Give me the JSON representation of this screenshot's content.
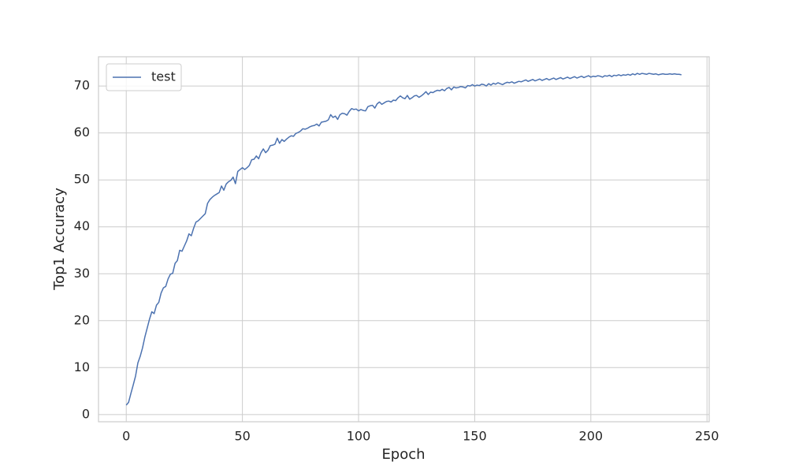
{
  "chart_data": {
    "type": "line",
    "x_label": "Epoch",
    "y_label": "Top1 Accuracy",
    "x": [
      0,
      1,
      2,
      3,
      4,
      5,
      6,
      7,
      8,
      9,
      10,
      11,
      12,
      13,
      14,
      15,
      16,
      17,
      18,
      19,
      20,
      21,
      22,
      23,
      24,
      25,
      26,
      27,
      28,
      29,
      30,
      31,
      32,
      33,
      34,
      35,
      36,
      37,
      38,
      39,
      40,
      41,
      42,
      43,
      44,
      45,
      46,
      47,
      48,
      49,
      50,
      51,
      52,
      53,
      54,
      55,
      56,
      57,
      58,
      59,
      60,
      61,
      62,
      63,
      64,
      65,
      66,
      67,
      68,
      69,
      70,
      71,
      72,
      73,
      74,
      75,
      76,
      77,
      78,
      79,
      80,
      81,
      82,
      83,
      84,
      85,
      86,
      87,
      88,
      89,
      90,
      91,
      92,
      93,
      94,
      95,
      96,
      97,
      98,
      99,
      100,
      101,
      102,
      103,
      104,
      105,
      106,
      107,
      108,
      109,
      110,
      111,
      112,
      113,
      114,
      115,
      116,
      117,
      118,
      119,
      120,
      121,
      122,
      123,
      124,
      125,
      126,
      127,
      128,
      129,
      130,
      131,
      132,
      133,
      134,
      135,
      136,
      137,
      138,
      139,
      140,
      141,
      142,
      143,
      144,
      145,
      146,
      147,
      148,
      149,
      150,
      151,
      152,
      153,
      154,
      155,
      156,
      157,
      158,
      159,
      160,
      161,
      162,
      163,
      164,
      165,
      166,
      167,
      168,
      169,
      170,
      171,
      172,
      173,
      174,
      175,
      176,
      177,
      178,
      179,
      180,
      181,
      182,
      183,
      184,
      185,
      186,
      187,
      188,
      189,
      190,
      191,
      192,
      193,
      194,
      195,
      196,
      197,
      198,
      199,
      200,
      201,
      202,
      203,
      204,
      205,
      206,
      207,
      208,
      209,
      210,
      211,
      212,
      213,
      214,
      215,
      216,
      217,
      218,
      219,
      220,
      221,
      222,
      223,
      224,
      225,
      226,
      227,
      228,
      229,
      230,
      231,
      232,
      233,
      234,
      235,
      236,
      237,
      238,
      239
    ],
    "series": [
      {
        "name": "test",
        "color": "#4c72b0",
        "values": [
          2.0,
          2.6,
          4.5,
          6.3,
          8.2,
          11.0,
          12.4,
          14.2,
          16.5,
          18.4,
          20.3,
          21.9,
          21.5,
          23.3,
          23.9,
          25.9,
          27.0,
          27.3,
          28.9,
          29.9,
          30.1,
          32.2,
          32.8,
          35.0,
          34.8,
          35.9,
          37.0,
          38.5,
          38.1,
          39.7,
          41.0,
          41.3,
          41.8,
          42.3,
          42.8,
          45.0,
          45.8,
          46.3,
          46.7,
          47.0,
          47.3,
          48.7,
          47.8,
          49.1,
          49.6,
          49.9,
          50.6,
          49.2,
          51.8,
          52.2,
          52.6,
          52.2,
          52.6,
          53.1,
          54.3,
          54.4,
          55.1,
          54.5,
          55.8,
          56.6,
          55.8,
          56.3,
          57.3,
          57.4,
          57.6,
          58.9,
          57.8,
          58.6,
          58.2,
          58.7,
          59.1,
          59.4,
          59.3,
          59.9,
          60.1,
          60.4,
          60.9,
          60.8,
          61.0,
          61.3,
          61.5,
          61.6,
          61.9,
          61.5,
          62.3,
          62.4,
          62.5,
          62.8,
          63.9,
          63.3,
          63.6,
          62.9,
          63.9,
          64.2,
          64.1,
          63.8,
          64.6,
          65.2,
          65.0,
          65.1,
          64.7,
          65.0,
          64.8,
          64.7,
          65.6,
          65.8,
          65.9,
          65.3,
          66.2,
          66.6,
          66.1,
          66.4,
          66.7,
          66.8,
          66.6,
          67.0,
          66.9,
          67.5,
          67.9,
          67.5,
          67.3,
          68.0,
          67.2,
          67.5,
          67.9,
          68.0,
          67.6,
          67.9,
          68.3,
          68.8,
          68.2,
          68.7,
          68.6,
          68.9,
          69.1,
          69.0,
          69.3,
          69.0,
          69.5,
          69.7,
          69.2,
          69.8,
          69.6,
          69.7,
          69.9,
          69.8,
          69.6,
          70.1,
          70.0,
          70.3,
          70.0,
          70.2,
          70.1,
          70.4,
          70.3,
          70.0,
          70.5,
          70.2,
          70.6,
          70.4,
          70.7,
          70.5,
          70.3,
          70.6,
          70.8,
          70.7,
          70.9,
          70.6,
          70.8,
          71.0,
          70.9,
          71.1,
          71.3,
          71.0,
          71.2,
          71.4,
          71.1,
          71.3,
          71.5,
          71.2,
          71.4,
          71.6,
          71.3,
          71.5,
          71.7,
          71.4,
          71.6,
          71.8,
          71.5,
          71.7,
          71.9,
          71.6,
          71.8,
          72.0,
          71.7,
          71.9,
          72.1,
          71.8,
          72.0,
          72.2,
          71.9,
          72.1,
          72.0,
          72.2,
          72.1,
          71.9,
          72.2,
          72.1,
          72.3,
          72.0,
          72.3,
          72.2,
          72.4,
          72.2,
          72.4,
          72.3,
          72.5,
          72.3,
          72.6,
          72.4,
          72.7,
          72.5,
          72.7,
          72.6,
          72.5,
          72.7,
          72.6,
          72.5,
          72.6,
          72.4,
          72.5,
          72.6,
          72.5,
          72.5,
          72.6,
          72.5,
          72.6,
          72.5,
          72.5,
          72.4
        ]
      }
    ],
    "xlim": [
      -11.95,
      250.95
    ],
    "ylim": [
      -1.54,
      76.24
    ],
    "xticks": [
      0,
      50,
      100,
      150,
      200,
      250
    ],
    "yticks": [
      0,
      10,
      20,
      30,
      40,
      50,
      60,
      70
    ],
    "grid": true,
    "legend": "upper left"
  }
}
